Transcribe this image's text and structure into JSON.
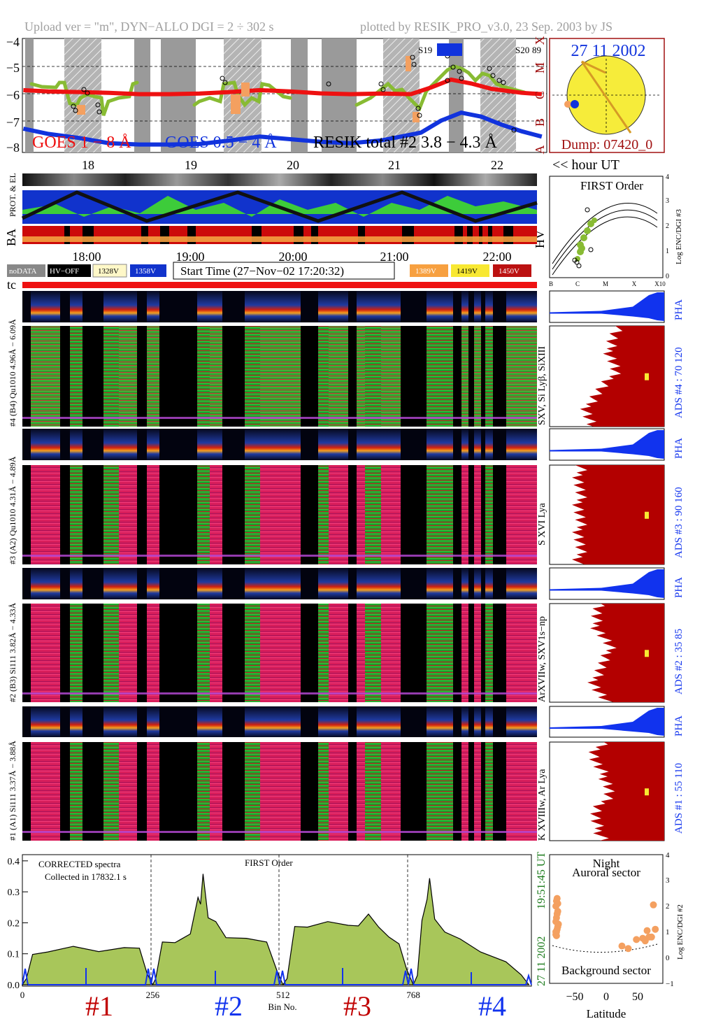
{
  "header": {
    "upload_text": "Upload ver = \"m\", DYN−ALLO DGI =   2 ÷ 302 s",
    "plotted_by": "plotted by RESIK_PRO_v3.0, 23 Sep. 2003 by JS"
  },
  "colors": {
    "goes_long": "#ee1111",
    "goes_short": "#1133dd",
    "resik_total": "#88bb33",
    "pha_blue": "#1133ee",
    "ads_red": "#b30000",
    "spectrum_fill": "#a8c65a",
    "orange": "#f4a060",
    "hv_328": "#fff8c8",
    "hv_358": "#1133cc",
    "hv_389": "#f7a040",
    "hv_419": "#f8e832",
    "hv_450": "#bb1111"
  },
  "goes_panel": {
    "y_ticks": [
      "−4",
      "−5",
      "−6",
      "−7",
      "−8"
    ],
    "class_labels": [
      "X",
      "M",
      "C",
      "B",
      "A"
    ],
    "legend_goes_long": "GOES 1 − 8 Å",
    "legend_goes_short": "GOES 0.5 − 4 Å",
    "legend_resik": "RESIK total #2  3.8 − 4.3 Å",
    "saa_label_1": "S19",
    "saa_label_2": "S20",
    "saa_value": "89",
    "hour_ticks": [
      "18",
      "19",
      "20",
      "21",
      "22"
    ],
    "hour_unit": "<< hour UT"
  },
  "goes_series": {
    "goes_long": {
      "x": [
        17.35,
        17.6,
        17.9,
        18.2,
        18.5,
        18.8,
        19.1,
        19.4,
        19.7,
        20.0,
        20.3,
        20.6,
        20.9,
        21.2,
        21.4,
        21.6,
        21.8,
        22.0,
        22.3,
        22.5
      ],
      "y": [
        -5.85,
        -5.9,
        -5.92,
        -5.95,
        -6.0,
        -6.0,
        -5.98,
        -5.92,
        -5.85,
        -5.9,
        -5.97,
        -6.0,
        -5.98,
        -6.0,
        -5.75,
        -5.45,
        -5.6,
        -5.8,
        -5.95,
        -6.0
      ]
    },
    "goes_short": {
      "x": [
        17.35,
        17.6,
        17.9,
        18.2,
        18.5,
        18.8,
        19.1,
        19.4,
        19.7,
        20.0,
        20.3,
        20.6,
        20.9,
        21.1,
        21.3,
        21.5,
        21.7,
        21.9,
        22.1,
        22.3,
        22.5
      ],
      "y": [
        -7.3,
        -7.5,
        -7.65,
        -7.85,
        -7.9,
        -7.9,
        -7.88,
        -7.75,
        -7.6,
        -7.7,
        -7.8,
        -7.85,
        -7.75,
        -7.6,
        -7.45,
        -7.0,
        -6.7,
        -6.85,
        -7.15,
        -7.4,
        -7.6
      ]
    }
  },
  "sun_panel": {
    "date": "27 11 2002",
    "dump": "Dump: 07420_0"
  },
  "orbit_panel": {
    "label_top": "PROT. & EL",
    "label_ba": "BA",
    "label_hv": "HV",
    "time_ticks": [
      "18:00",
      "19:00",
      "20:00",
      "21:00",
      "22:00"
    ]
  },
  "first_order_panel": {
    "title": "FIRST Order",
    "y_ticks": [
      "0",
      "1",
      "2",
      "3",
      "4"
    ],
    "y_label": "Log ENC/DGI #3",
    "x_ticks": [
      "B",
      "C",
      "M",
      "X",
      "X10"
    ]
  },
  "legend_bar": {
    "nodata": "noDATA",
    "hvoff": "HV−OFF",
    "v328": "1328V",
    "v358": "1358V",
    "start_time": "Start Time (27−Nov−02 17:20:32)",
    "v389": "1389V",
    "v419": "1419V",
    "v450": "1450V",
    "tc": "tc"
  },
  "channels": [
    {
      "pha_label": "#4 (B4) Qu1010 4.96Å − 6.09Å",
      "ion_label": "SXV, Si Lyβ, SiXIII",
      "pha_side": "PHA",
      "ads_label": "ADS #4 :   70 120"
    },
    {
      "pha_label": "#3 (A2) Qu1010 4.31Å − 4.89Å",
      "ion_label": "S XVI Lya",
      "pha_side": "PHA",
      "ads_label": "ADS #3 :   90 160"
    },
    {
      "pha_label": "#2 (B3) Si111 3.82Å − 4.33Å",
      "ion_label": "ArXVIIw, SXV1s−np",
      "pha_side": "PHA",
      "ads_label": "ADS #2 :   35  85"
    },
    {
      "pha_label": "#1 (A1) Si111 3.37Å − 3.88Å",
      "ion_label": "K XVIIIw, Ar Lya",
      "pha_side": "PHA",
      "ads_label": "ADS #1 :   55 110"
    }
  ],
  "spectrum_panel": {
    "note_1": "CORRECTED spectra",
    "note_2": "Collected in 17832.1 s",
    "order_label": "FIRST Order",
    "date_label": "27 11 2002",
    "time_label": "19:51:45 UT",
    "x_label": "Bin No.",
    "channel_labels": [
      "#1",
      "#2",
      "#3",
      "#4"
    ]
  },
  "aurora_panel": {
    "title_1": "Night",
    "title_2": "Auroral sector",
    "bottom": "Background sector",
    "x_label": "Latitude",
    "x_ticks": [
      "−50",
      "0",
      "50"
    ],
    "y_ticks": [
      "−1",
      "0",
      "1",
      "2",
      "3",
      "4"
    ],
    "y_label": "Log ENC/DGI #2",
    "points_lat": [
      -80,
      -79,
      -78,
      -77,
      -76,
      -80,
      -79,
      -78,
      -77,
      -80,
      -79,
      -78,
      -80,
      -79,
      -77,
      25,
      35,
      48,
      58,
      62,
      65,
      68,
      72,
      75,
      78
    ],
    "points_log": [
      0.9,
      1.0,
      1.1,
      1.2,
      1.3,
      1.4,
      1.55,
      1.7,
      1.8,
      2.0,
      2.2,
      2.3,
      1.0,
      0.85,
      2.1,
      0.45,
      0.35,
      0.7,
      0.75,
      0.65,
      1.05,
      0.8,
      0.8,
      2.05,
      1.1
    ]
  },
  "chart_data": [
    {
      "type": "line",
      "title": "",
      "xlabel": "",
      "ylabel": "",
      "x_unit": "hour UT",
      "xlim": [
        17.34,
        22.55
      ],
      "ylim": [
        -8.2,
        -3.9
      ],
      "y_scale": "log10 flux",
      "series": [
        {
          "name": "GOES 1 − 8 Å",
          "x": [
            17.35,
            17.6,
            17.9,
            18.2,
            18.5,
            18.8,
            19.1,
            19.4,
            19.7,
            20.0,
            20.3,
            20.6,
            20.9,
            21.2,
            21.4,
            21.6,
            21.8,
            22.0,
            22.3,
            22.5
          ],
          "y": [
            -5.85,
            -5.9,
            -5.92,
            -5.95,
            -6.0,
            -6.0,
            -5.98,
            -5.92,
            -5.85,
            -5.9,
            -5.97,
            -6.0,
            -5.98,
            -6.0,
            -5.75,
            -5.45,
            -5.6,
            -5.8,
            -5.95,
            -6.0
          ]
        },
        {
          "name": "GOES 0.5 − 4 Å",
          "x": [
            17.35,
            17.6,
            17.9,
            18.2,
            18.5,
            18.8,
            19.1,
            19.4,
            19.7,
            20.0,
            20.3,
            20.6,
            20.9,
            21.1,
            21.3,
            21.5,
            21.7,
            21.9,
            22.1,
            22.3,
            22.5
          ],
          "y": [
            -7.3,
            -7.5,
            -7.65,
            -7.85,
            -7.9,
            -7.9,
            -7.88,
            -7.75,
            -7.6,
            -7.7,
            -7.8,
            -7.85,
            -7.75,
            -7.6,
            -7.45,
            -7.0,
            -6.7,
            -6.85,
            -7.15,
            -7.4,
            -7.6
          ]
        }
      ]
    },
    {
      "type": "area",
      "title": "",
      "xlabel": "Bin No.",
      "ylabel": "",
      "xlim": [
        0,
        1000
      ],
      "ylim": [
        0,
        0.42
      ],
      "x_ticks": [
        0,
        256,
        512,
        768
      ],
      "y_ticks": [
        0.0,
        0.1,
        0.2,
        0.3,
        0.4
      ],
      "grid": false,
      "series": [
        {
          "name": "#1",
          "x": [
            0,
            8,
            20,
            50,
            100,
            150,
            200,
            230,
            245,
            256
          ],
          "y": [
            0.0,
            0.02,
            0.09,
            0.11,
            0.12,
            0.115,
            0.12,
            0.11,
            0.04,
            0.0
          ]
        },
        {
          "name": "#2",
          "x": [
            256,
            262,
            275,
            300,
            330,
            345,
            350,
            355,
            365,
            380,
            400,
            440,
            480,
            500,
            512
          ],
          "y": [
            0.0,
            0.02,
            0.13,
            0.14,
            0.16,
            0.29,
            0.26,
            0.35,
            0.22,
            0.2,
            0.16,
            0.15,
            0.13,
            0.05,
            0.0
          ]
        },
        {
          "name": "#3",
          "x": [
            512,
            520,
            535,
            560,
            600,
            640,
            660,
            680,
            700,
            720,
            740,
            755,
            768
          ],
          "y": [
            0.0,
            0.02,
            0.18,
            0.19,
            0.2,
            0.2,
            0.19,
            0.22,
            0.19,
            0.15,
            0.14,
            0.05,
            0.0
          ]
        },
        {
          "name": "#4",
          "x": [
            768,
            776,
            785,
            795,
            800,
            810,
            830,
            860,
            900,
            950,
            980,
            995
          ],
          "y": [
            0.0,
            0.03,
            0.2,
            0.28,
            0.34,
            0.22,
            0.17,
            0.14,
            0.11,
            0.07,
            0.04,
            0.0
          ]
        }
      ]
    },
    {
      "type": "scatter",
      "title": "Night",
      "xlabel": "Latitude",
      "ylabel": "Log ENC/DGI #2",
      "xlim": [
        -90,
        90
      ],
      "ylim": [
        -1,
        4
      ],
      "series": [
        {
          "name": "Auroral sector",
          "x": [
            -80,
            -79,
            -78,
            -77,
            -76,
            -80,
            -79,
            -78,
            -77,
            -80,
            -79,
            -78,
            -80,
            -79,
            -77,
            25,
            35,
            48,
            58,
            62,
            65,
            68,
            72,
            75,
            78
          ],
          "y": [
            0.9,
            1.0,
            1.1,
            1.2,
            1.3,
            1.4,
            1.55,
            1.7,
            1.8,
            2.0,
            2.2,
            2.3,
            1.0,
            0.85,
            2.1,
            0.45,
            0.35,
            0.7,
            0.75,
            0.65,
            1.05,
            0.8,
            0.8,
            2.05,
            1.1
          ]
        }
      ]
    }
  ]
}
